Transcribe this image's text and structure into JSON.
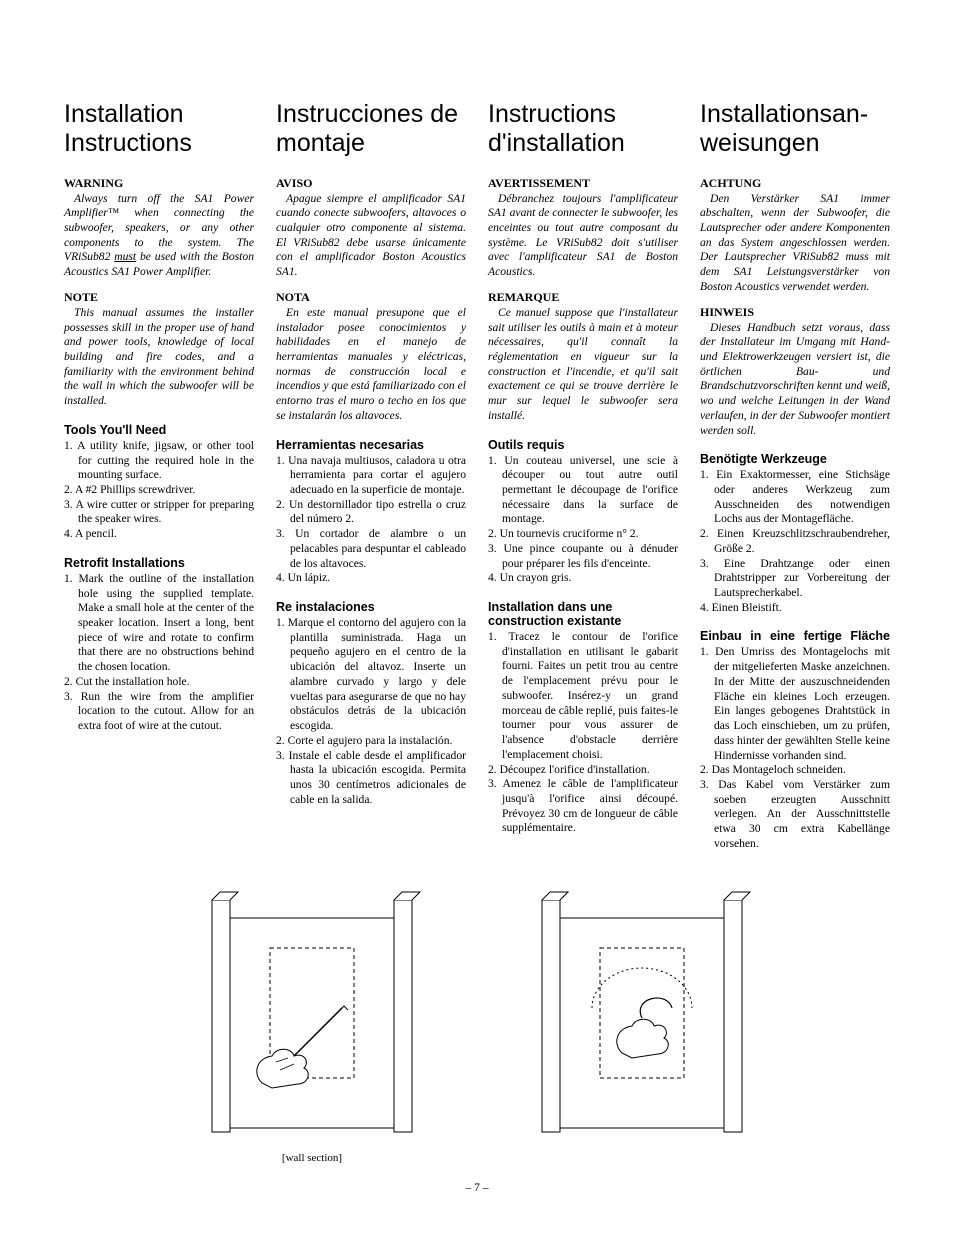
{
  "page_number": "– 7 –",
  "figure_caption": "[wall section]",
  "columns": [
    {
      "lang": "en",
      "title": "Installation Instructions",
      "blocks": [
        {
          "type": "bold-head",
          "text": "WARNING"
        },
        {
          "type": "italic-para",
          "text": "Always turn off the SA1 Power Amplifier™ when connecting the subwoofer, speakers, or any other components to the system. The VRiSub82 <u>must</u> be used with the Boston Acoustics SA1 Power Amplifier."
        },
        {
          "type": "bold-head",
          "text": "NOTE"
        },
        {
          "type": "italic-para",
          "text": "This manual assumes the installer possesses skill in the proper use of hand and power tools, knowledge of local building and fire codes, and a familiarity with the environment behind the wall in which the subwoofer will be installed."
        },
        {
          "type": "sans-head",
          "text": "Tools You'll Need"
        },
        {
          "type": "list",
          "items": [
            "1. A utility knife, jigsaw, or other tool for cutting the required hole in the mounting surface.",
            "2. A #2 Phillips screwdriver.",
            "3. A wire cutter or stripper for preparing the speaker wires.",
            "4. A pencil."
          ]
        },
        {
          "type": "sans-head",
          "text": "Retrofit Installations"
        },
        {
          "type": "list",
          "items": [
            "1. Mark the outline of the installation hole using the supplied template. Make a small hole at the center of the speaker location. Insert a long, bent piece of wire and rotate to confirm that there are no obstructions behind the chosen location.",
            "2. Cut the installation hole.",
            "3. Run the wire from the amplifier location to the cutout. Allow for an extra foot of wire at the cutout."
          ]
        }
      ]
    },
    {
      "lang": "es",
      "title": "Instrucciones de montaje",
      "blocks": [
        {
          "type": "bold-head",
          "text": "AVISO"
        },
        {
          "type": "italic-para",
          "text": "Apague siempre el amplificador SA1 cuando conecte subwoofers, altavoces o cualquier otro componente al sistema. El VRiSub82 debe usarse únicamente con el amplificador Boston Acoustics SA1."
        },
        {
          "type": "bold-head",
          "text": "NOTA"
        },
        {
          "type": "italic-para",
          "text": "En este manual presupone que el instalador posee conocimientos y habilidades en el manejo de herramientas manuales y eléctricas, normas de construcción local e incendios y que está familiarizado con el entorno tras el muro o techo en los que se instalarán los altavoces."
        },
        {
          "type": "sans-head",
          "text": "Herramientas necesarias"
        },
        {
          "type": "list",
          "items": [
            "1. Una navaja multiusos, caladora u otra herramienta para cortar el agujero adecuado en la superficie de montaje.",
            "2. Un destornillador tipo estrella o cruz del número 2.",
            "3. Un cortador de alambre o un pelacables para despuntar el cableado de los altavoces.",
            "4. Un lápiz."
          ]
        },
        {
          "type": "sans-head",
          "text": "Re instalaciones"
        },
        {
          "type": "list",
          "items": [
            "1. Marque el contorno del agujero con la plantilla suministrada. Haga un pequeño agujero en el centro de la ubicación del altavoz. Inserte un alambre curvado y largo y dele vueltas para asegurarse de que no hay obstáculos detrás de la ubicación escogida.",
            "2. Corte el agujero para la instalación.",
            "3. Instale el cable desde el amplificador hasta la ubicación escogida. Permita unos 30 centímetros adicionales de cable en la salida."
          ]
        }
      ]
    },
    {
      "lang": "fr",
      "title": "Instructions d'installation",
      "blocks": [
        {
          "type": "bold-head",
          "text": "AVERTISSEMENT"
        },
        {
          "type": "italic-para",
          "text": "Débranchez toujours l'amplificateur SA1 avant de connecter le subwoofer, les enceintes ou tout autre composant du système. Le VRiSub82 doit s'utiliser avec l'amplificateur SA1 de Boston Acoustics."
        },
        {
          "type": "bold-head",
          "text": "REMARQUE"
        },
        {
          "type": "italic-para",
          "text": "Ce manuel suppose que l'installateur sait utiliser les outils à main et à moteur nécessaires, qu'il connaît la réglementation en vigueur sur la construction et l'incendie, et qu'il sait exactement ce qui se trouve derrière le mur sur lequel le subwoofer sera installé."
        },
        {
          "type": "sans-head",
          "text": "Outils requis"
        },
        {
          "type": "list",
          "items": [
            "1. Un couteau universel, une scie à découper ou tout autre outil permettant le découpage de l'orifice nécessaire dans la surface de montage.",
            "2. Un tournevis cruciforme n° 2.",
            "3. Une pince coupante ou à dénuder pour préparer les fils d'enceinte.",
            "4. Un crayon gris."
          ]
        },
        {
          "type": "sans-head",
          "text": "Installation dans une construction existante"
        },
        {
          "type": "list",
          "items": [
            "1. Tracez le contour de l'orifice d'installation en utilisant le gabarit fourni. Faites un petit trou au centre de l'emplacement prévu pour le subwoofer. Insérez-y un grand morceau de câble replié, puis faites-le tourner pour vous assurer de l'absence d'obstacle derrière l'emplacement choisi.",
            "2. Découpez l'orifice d'installation.",
            "3. Amenez le câble de l'amplificateur jusqu'à l'orifice ainsi découpé. Prévoyez 30 cm de longueur de câble supplémentaire."
          ]
        }
      ]
    },
    {
      "lang": "de",
      "title": "Installationsan­weisungen",
      "blocks": [
        {
          "type": "bold-head",
          "text": "ACHTUNG"
        },
        {
          "type": "italic-para",
          "text": "Den Verstärker SA1 immer abschalten, wenn der Subwoofer, die Lautsprecher oder andere Komponenten an das System angeschlossen werden. Der Lautsprecher VRiSub82 muss mit dem SA1 Leistungsverstärker von Boston Acoustics verwendet werden."
        },
        {
          "type": "bold-head",
          "text": "HINWEIS"
        },
        {
          "type": "italic-para-de",
          "text": "Dieses Handbuch setzt voraus, dass der Installateur im Umgang mit Hand- und Elektrowerkzeugen versiert ist, die örtlichen Bau- und Brandschutzvorschriften kennt und weiß, wo und welche Leitungen in der Wand verlaufen, in der der Subwoofer montiert werden soll."
        },
        {
          "type": "sans-head",
          "text": "Benötigte Werkzeuge"
        },
        {
          "type": "list",
          "items": [
            "1. Ein Exaktormesser, eine Stichsäge oder anderes Werkzeug zum Ausschneiden des notwendigen Lochs aus der Montagefläche.",
            "2. Einen Kreuzschlitzschraubendreher, Größe 2.",
            "3. Eine Drahtzange oder einen Drahtstripper zur Vorbereitung der Lautsprecherkabel.",
            "4. Einen Bleistift."
          ]
        },
        {
          "type": "sans-head",
          "text": "Einbau in eine fertige Fläche"
        },
        {
          "type": "list",
          "items": [
            "1. Den Umriss des Montagelochs mit der mitgelieferten Maske anzeichnen. In der Mitte der auszuschneidenden Fläche ein kleines Loch erzeugen. Ein langes gebogenes Drahtstück in das Loch einschieben, um zu prüfen, dass hinter der gewählten Stelle keine Hindernisse vorhanden sind.",
            "2. Das Montageloch schneiden.",
            "3. Das Kabel vom Verstärker zum soeben erzeugten Ausschnitt verlegen. An der Ausschnittstelle etwa 30 cm extra Kabellänge vorsehen."
          ]
        }
      ]
    }
  ]
}
